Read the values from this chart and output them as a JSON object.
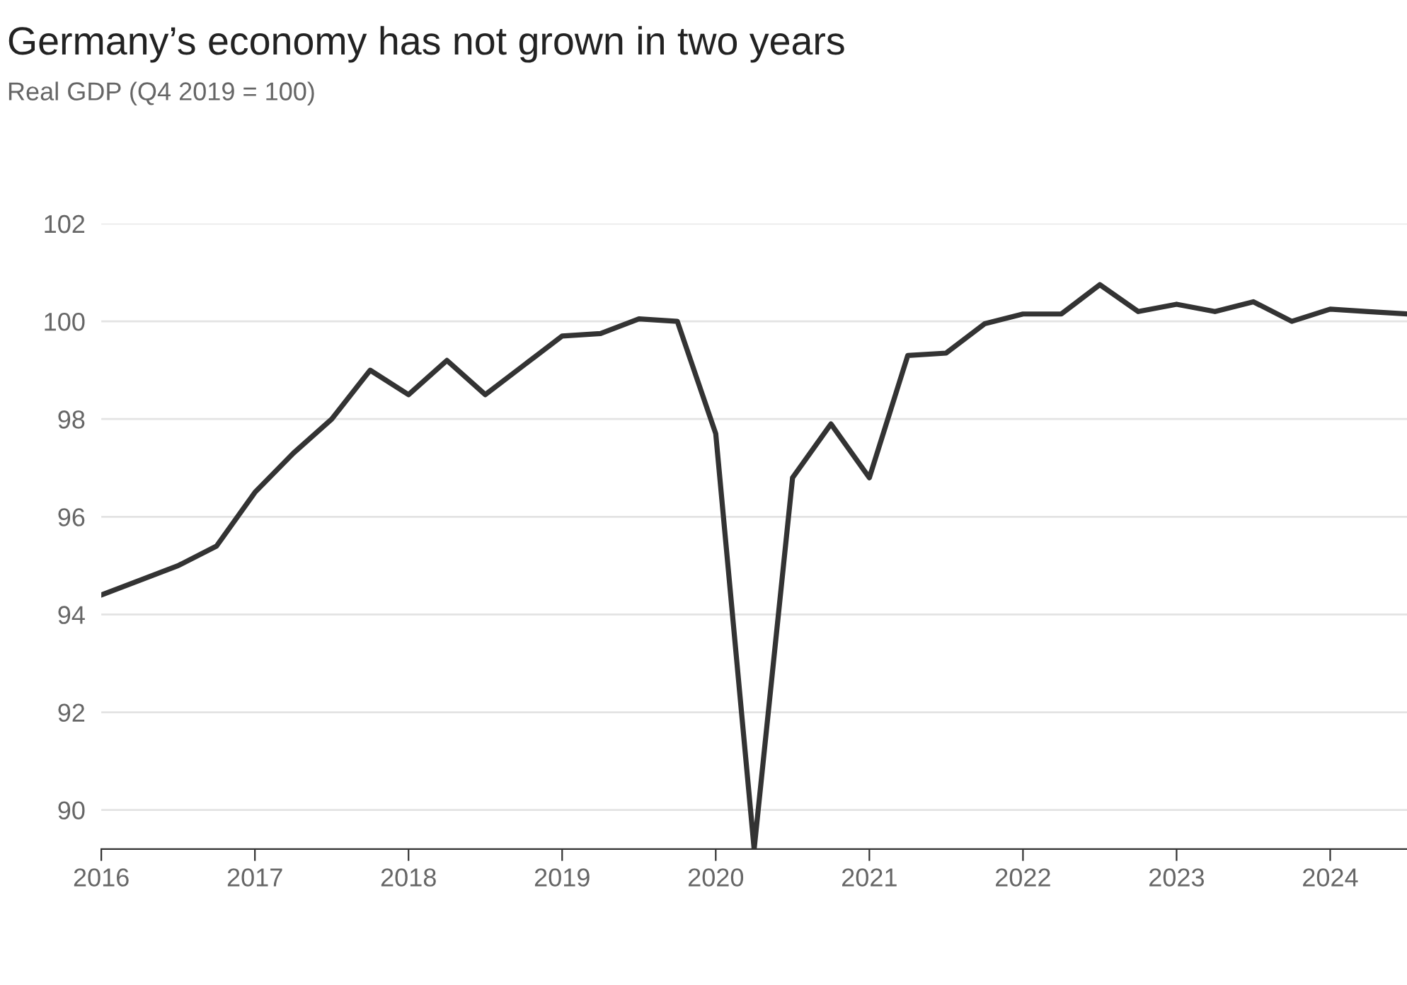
{
  "chart_data": {
    "type": "line",
    "title": "Germany’s economy has not grown in two years",
    "subtitle": "Real GDP (Q4 2019 = 100)",
    "x": [
      2016,
      2016.25,
      2016.5,
      2016.75,
      2017,
      2017.25,
      2017.5,
      2017.75,
      2018,
      2018.25,
      2018.5,
      2018.75,
      2019,
      2019.25,
      2019.5,
      2019.75,
      2020,
      2020.25,
      2020.5,
      2020.75,
      2021,
      2021.25,
      2021.5,
      2021.75,
      2022,
      2022.25,
      2022.5,
      2022.75,
      2023,
      2023.25,
      2023.5,
      2023.75,
      2024,
      2024.25,
      2024.5
    ],
    "series": [
      {
        "color": "#333333",
        "values": [
          94.4,
          94.7,
          95.0,
          95.4,
          96.5,
          97.3,
          98.0,
          99.0,
          98.5,
          99.2,
          98.5,
          99.1,
          99.7,
          99.75,
          100.05,
          100.0,
          97.7,
          89.2,
          96.8,
          97.9,
          96.8,
          99.3,
          99.35,
          99.95,
          100.15,
          100.15,
          100.75,
          100.2,
          100.35,
          100.2,
          100.4,
          100.0,
          100.25,
          100.2,
          100.15
        ]
      }
    ],
    "xlim": [
      2016,
      2024.5
    ],
    "xticks": [
      2016,
      2017,
      2018,
      2019,
      2020,
      2021,
      2022,
      2023,
      2024
    ],
    "ylim": [
      89.2,
      102
    ],
    "yticks": [
      90,
      92,
      94,
      96,
      98,
      100,
      102
    ],
    "grid": "y",
    "legend": false,
    "marker": "none",
    "line_style": "solid"
  }
}
